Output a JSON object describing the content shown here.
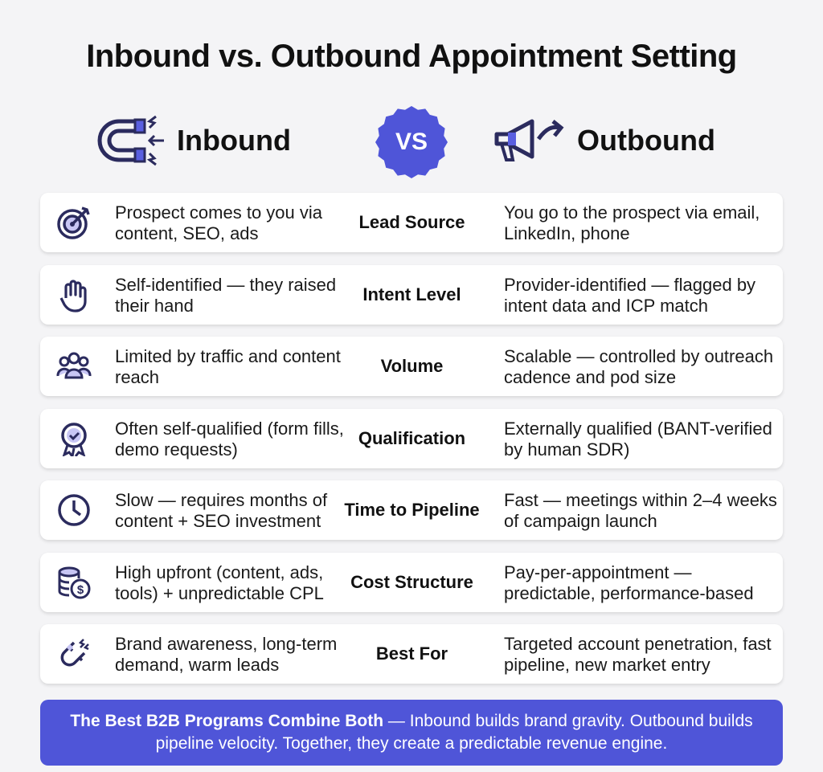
{
  "title": "Inbound vs. Outbound Appointment Setting",
  "inbound_label": "Inbound",
  "vs_label": "VS",
  "outbound_label": "Outbound",
  "colors": {
    "accent": "#4f55d8",
    "icon_stroke": "#2b2b5e",
    "icon_fill": "#c8c6f4",
    "background": "#f4f4f6"
  },
  "rows": [
    {
      "icon": "target-icon",
      "inbound": "Prospect comes to you via content, SEO, ads",
      "criterion": "Lead Source",
      "outbound": "You go to the prospect via email, LinkedIn, phone"
    },
    {
      "icon": "raised-hand-icon",
      "inbound": "Self-identified — they raised their hand",
      "criterion": "Intent Level",
      "outbound": "Provider-identified — flagged by intent data and ICP match"
    },
    {
      "icon": "people-icon",
      "inbound": "Limited by traffic and content reach",
      "criterion": "Volume",
      "outbound": "Scalable — controlled by outreach cadence and pod size"
    },
    {
      "icon": "badge-check-icon",
      "inbound": "Often self-qualified (form fills, demo requests)",
      "criterion": "Qualification",
      "outbound": "Externally qualified (BANT-verified by human SDR)"
    },
    {
      "icon": "clock-icon",
      "inbound": "Slow — requires months of content + SEO investment",
      "criterion": "Time to Pipeline",
      "outbound": "Fast — meetings within 2–4 weeks of campaign launch"
    },
    {
      "icon": "coins-icon",
      "inbound": "High upfront (content, ads, tools) + unpredictable CPL",
      "criterion": "Cost Structure",
      "outbound": "Pay-per-appointment — predictable, performance-based"
    },
    {
      "icon": "magnet-icon",
      "inbound": "Brand awareness, long-term demand, warm leads",
      "criterion": "Best For",
      "outbound": "Targeted account penetration, fast pipeline, new market entry"
    }
  ],
  "footer": {
    "bold": "The Best B2B Programs Combine Both",
    "text": " — Inbound builds brand gravity. Outbound builds pipeline velocity. Together, they create a predictable revenue engine."
  }
}
